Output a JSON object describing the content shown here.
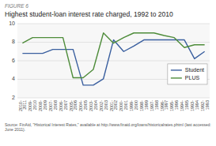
{
  "chart_data": {
    "type": "line",
    "title": "Highest student-loan interest rate charged, 1992 to 2010",
    "annotations": [
      "FIGURE 6",
      "Source: FinAid, \"Historical Interest Rates,\" available at http://www.finaid.org/loans/historicalrates.phtml (last accessed: June 2011)."
    ],
    "categories": [
      "2010-\n2011",
      "2009-\n2010",
      "2008-\n2009",
      "2007-\n2008",
      "2006-\n2007",
      "2005-\n2006",
      "2004-\n2005",
      "2003-\n2004",
      "2002-\n2003",
      "2001-\n2002",
      "2000-\n2001",
      "1999-\n2000",
      "1998-\n1999",
      "1997-\n1998",
      "1996-\n1997",
      "1995-\n1996",
      "1994-\n1995",
      "1993-\n1994",
      "1992-\n1993"
    ],
    "series": [
      {
        "name": "Student",
        "color": "#3a5f9f",
        "values": [
          6.8,
          6.8,
          6.8,
          7.22,
          7.22,
          7.22,
          3.37,
          3.37,
          4.06,
          8.25,
          7.0,
          7.59,
          8.25,
          8.25,
          8.25,
          8.25,
          8.25,
          6.22,
          7.0
        ]
      },
      {
        "name": "PLUS",
        "color": "#4e8c3a",
        "values": [
          7.9,
          8.5,
          8.5,
          8.5,
          8.5,
          4.17,
          4.17,
          5.06,
          9.0,
          7.9,
          8.5,
          9.0,
          9.0,
          9.0,
          8.72,
          8.5,
          7.43,
          7.72,
          7.72
        ]
      }
    ],
    "ylim": [
      2,
      10
    ],
    "yticks": [
      2,
      4,
      6,
      8,
      10
    ],
    "grid": true,
    "legend": "right"
  }
}
